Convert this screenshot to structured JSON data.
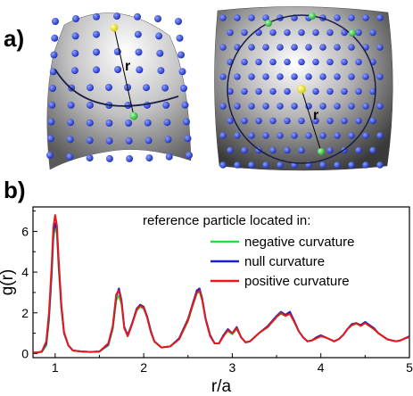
{
  "figure": {
    "panel_a_label": "a)",
    "panel_b_label": "b)",
    "left_illustration": {
      "radius_label": "r",
      "surface": "saddle"
    },
    "right_illustration": {
      "radius_label": "r",
      "surface": "sphere"
    },
    "colors": {
      "particle": "#2a3fd6",
      "reference_particle": "#f2e62a",
      "ring_particle": "#2fd14a",
      "ring": "#1a1f4a"
    }
  },
  "chart_data": {
    "type": "line",
    "xlabel": "r/a",
    "ylabel": "g(r)",
    "xlim": [
      0.75,
      5.0
    ],
    "ylim": [
      -0.2,
      7.2
    ],
    "xticks": [
      1,
      2,
      3,
      4,
      5
    ],
    "yticks": [
      0,
      2,
      4,
      6
    ],
    "legend_title": "reference particle located in:",
    "legend_position": "upper-right",
    "series": [
      {
        "name": "negative curvature",
        "color": "#22e03a",
        "x": [
          0.75,
          0.8,
          0.85,
          0.9,
          0.93,
          0.96,
          0.98,
          1.0,
          1.02,
          1.04,
          1.07,
          1.1,
          1.15,
          1.2,
          1.3,
          1.4,
          1.5,
          1.6,
          1.65,
          1.69,
          1.72,
          1.75,
          1.78,
          1.82,
          1.87,
          1.92,
          1.96,
          2.0,
          2.04,
          2.08,
          2.12,
          2.2,
          2.3,
          2.4,
          2.5,
          2.55,
          2.6,
          2.63,
          2.66,
          2.7,
          2.75,
          2.8,
          2.85,
          2.9,
          2.95,
          3.0,
          3.05,
          3.1,
          3.15,
          3.2,
          3.3,
          3.4,
          3.5,
          3.55,
          3.6,
          3.65,
          3.7,
          3.75,
          3.8,
          3.85,
          3.9,
          3.95,
          4.0,
          4.05,
          4.1,
          4.15,
          4.2,
          4.25,
          4.3,
          4.35,
          4.4,
          4.45,
          4.5,
          4.55,
          4.6,
          4.65,
          4.7,
          4.75,
          4.8,
          4.85,
          4.9,
          4.95,
          5.0
        ],
        "y": [
          0.05,
          0.05,
          0.08,
          0.4,
          1.6,
          3.8,
          5.6,
          6.2,
          5.9,
          4.2,
          2.2,
          1.0,
          0.4,
          0.15,
          0.1,
          0.08,
          0.1,
          0.4,
          1.2,
          2.6,
          2.85,
          2.4,
          1.3,
          0.9,
          1.5,
          2.1,
          2.3,
          2.2,
          1.8,
          1.1,
          0.6,
          0.3,
          0.35,
          0.7,
          1.6,
          2.3,
          2.95,
          3.05,
          2.6,
          1.7,
          0.9,
          0.5,
          0.5,
          0.9,
          1.1,
          0.95,
          1.2,
          0.8,
          0.55,
          0.6,
          1.0,
          1.3,
          1.8,
          1.95,
          1.85,
          2.0,
          1.6,
          1.1,
          0.8,
          0.6,
          0.65,
          0.75,
          0.85,
          0.8,
          0.7,
          0.6,
          0.7,
          0.9,
          1.2,
          1.4,
          1.45,
          1.4,
          1.5,
          1.35,
          1.2,
          1.0,
          0.85,
          0.7,
          0.65,
          0.6,
          0.65,
          0.75,
          0.8
        ]
      },
      {
        "name": "null curvature",
        "color": "#1a1fd0",
        "x": [
          0.75,
          0.8,
          0.85,
          0.9,
          0.93,
          0.96,
          0.98,
          1.0,
          1.02,
          1.04,
          1.07,
          1.1,
          1.15,
          1.2,
          1.3,
          1.4,
          1.5,
          1.6,
          1.65,
          1.69,
          1.72,
          1.75,
          1.78,
          1.82,
          1.87,
          1.92,
          1.96,
          2.0,
          2.04,
          2.08,
          2.12,
          2.2,
          2.3,
          2.4,
          2.5,
          2.55,
          2.6,
          2.63,
          2.66,
          2.7,
          2.75,
          2.8,
          2.85,
          2.9,
          2.95,
          3.0,
          3.05,
          3.1,
          3.15,
          3.2,
          3.3,
          3.4,
          3.5,
          3.55,
          3.6,
          3.65,
          3.7,
          3.75,
          3.8,
          3.85,
          3.9,
          3.95,
          4.0,
          4.05,
          4.1,
          4.15,
          4.2,
          4.25,
          4.3,
          4.35,
          4.4,
          4.45,
          4.5,
          4.55,
          4.6,
          4.65,
          4.7,
          4.75,
          4.8,
          4.85,
          4.9,
          4.95,
          5.0
        ],
        "y": [
          0.05,
          0.05,
          0.1,
          0.5,
          1.8,
          4.0,
          5.9,
          6.4,
          6.1,
          4.4,
          2.3,
          1.0,
          0.4,
          0.15,
          0.1,
          0.08,
          0.1,
          0.45,
          1.3,
          2.8,
          3.2,
          2.6,
          1.3,
          0.9,
          1.5,
          2.2,
          2.4,
          2.3,
          1.8,
          1.1,
          0.6,
          0.3,
          0.35,
          0.75,
          1.7,
          2.4,
          3.1,
          3.2,
          2.7,
          1.7,
          0.9,
          0.5,
          0.5,
          0.9,
          1.2,
          1.0,
          1.3,
          0.8,
          0.55,
          0.6,
          1.0,
          1.35,
          1.85,
          2.05,
          1.9,
          2.05,
          1.6,
          1.1,
          0.8,
          0.6,
          0.65,
          0.8,
          0.9,
          0.8,
          0.7,
          0.6,
          0.7,
          0.9,
          1.2,
          1.45,
          1.5,
          1.4,
          1.55,
          1.4,
          1.25,
          1.0,
          0.85,
          0.7,
          0.65,
          0.6,
          0.65,
          0.75,
          0.85
        ]
      },
      {
        "name": "positive curvature",
        "color": "#e8181b",
        "x": [
          0.75,
          0.8,
          0.85,
          0.9,
          0.93,
          0.96,
          0.98,
          1.0,
          1.02,
          1.04,
          1.07,
          1.1,
          1.15,
          1.2,
          1.3,
          1.4,
          1.5,
          1.6,
          1.65,
          1.69,
          1.72,
          1.75,
          1.78,
          1.82,
          1.87,
          1.92,
          1.96,
          2.0,
          2.04,
          2.08,
          2.12,
          2.2,
          2.3,
          2.4,
          2.5,
          2.55,
          2.6,
          2.63,
          2.66,
          2.7,
          2.75,
          2.8,
          2.85,
          2.9,
          2.95,
          3.0,
          3.05,
          3.1,
          3.15,
          3.2,
          3.3,
          3.4,
          3.5,
          3.55,
          3.6,
          3.65,
          3.7,
          3.75,
          3.8,
          3.85,
          3.9,
          3.95,
          4.0,
          4.05,
          4.1,
          4.15,
          4.2,
          4.25,
          4.3,
          4.35,
          4.4,
          4.45,
          4.5,
          4.55,
          4.6,
          4.65,
          4.7,
          4.75,
          4.8,
          4.85,
          4.9,
          4.95,
          5.0
        ],
        "y": [
          0.05,
          0.05,
          0.1,
          0.6,
          2.0,
          4.3,
          6.2,
          6.8,
          6.3,
          4.6,
          2.4,
          1.05,
          0.4,
          0.15,
          0.1,
          0.08,
          0.1,
          0.5,
          1.35,
          2.9,
          3.1,
          2.5,
          1.25,
          0.85,
          1.45,
          2.15,
          2.35,
          2.25,
          1.75,
          1.05,
          0.6,
          0.3,
          0.35,
          0.7,
          1.65,
          2.35,
          3.0,
          3.1,
          2.65,
          1.65,
          0.85,
          0.5,
          0.5,
          0.85,
          1.15,
          1.0,
          1.25,
          0.8,
          0.55,
          0.6,
          1.0,
          1.3,
          1.8,
          2.0,
          1.85,
          1.95,
          1.55,
          1.1,
          0.8,
          0.6,
          0.65,
          0.75,
          0.85,
          0.8,
          0.7,
          0.6,
          0.7,
          0.9,
          1.2,
          1.4,
          1.5,
          1.35,
          1.5,
          1.35,
          1.2,
          1.0,
          0.85,
          0.7,
          0.65,
          0.6,
          0.65,
          0.75,
          0.8
        ]
      }
    ]
  }
}
